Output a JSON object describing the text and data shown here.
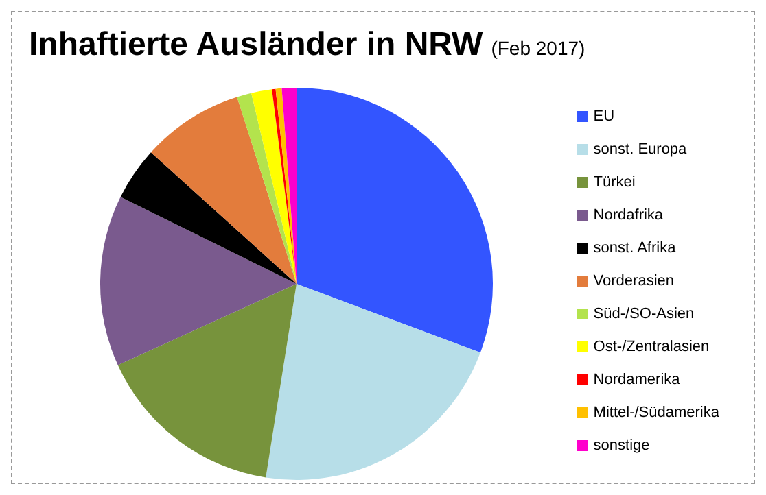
{
  "chart_data": {
    "type": "pie",
    "title": "Inhaftierte Ausländer in NRW",
    "subtitle": "(Feb 2017)",
    "categories": [
      "EU",
      "sonst. Europa",
      "Türkei",
      "Nordafrika",
      "sonst. Afrika",
      "Vorderasien",
      "Süd-/SO-Asien",
      "Ost-/Zentralasien",
      "Nordamerika",
      "Mittel-/Südamerika",
      "sonstige"
    ],
    "values": [
      30.7,
      21.8,
      15.7,
      14.1,
      4.4,
      8.4,
      1.2,
      1.7,
      0.3,
      0.5,
      1.2
    ],
    "colors": [
      "#3355ff",
      "#b7dee8",
      "#77933c",
      "#7a5a8e",
      "#000000",
      "#e37c3c",
      "#b3e34d",
      "#ffff00",
      "#ff0000",
      "#ffc000",
      "#ff00cc"
    ],
    "legend": "right"
  }
}
